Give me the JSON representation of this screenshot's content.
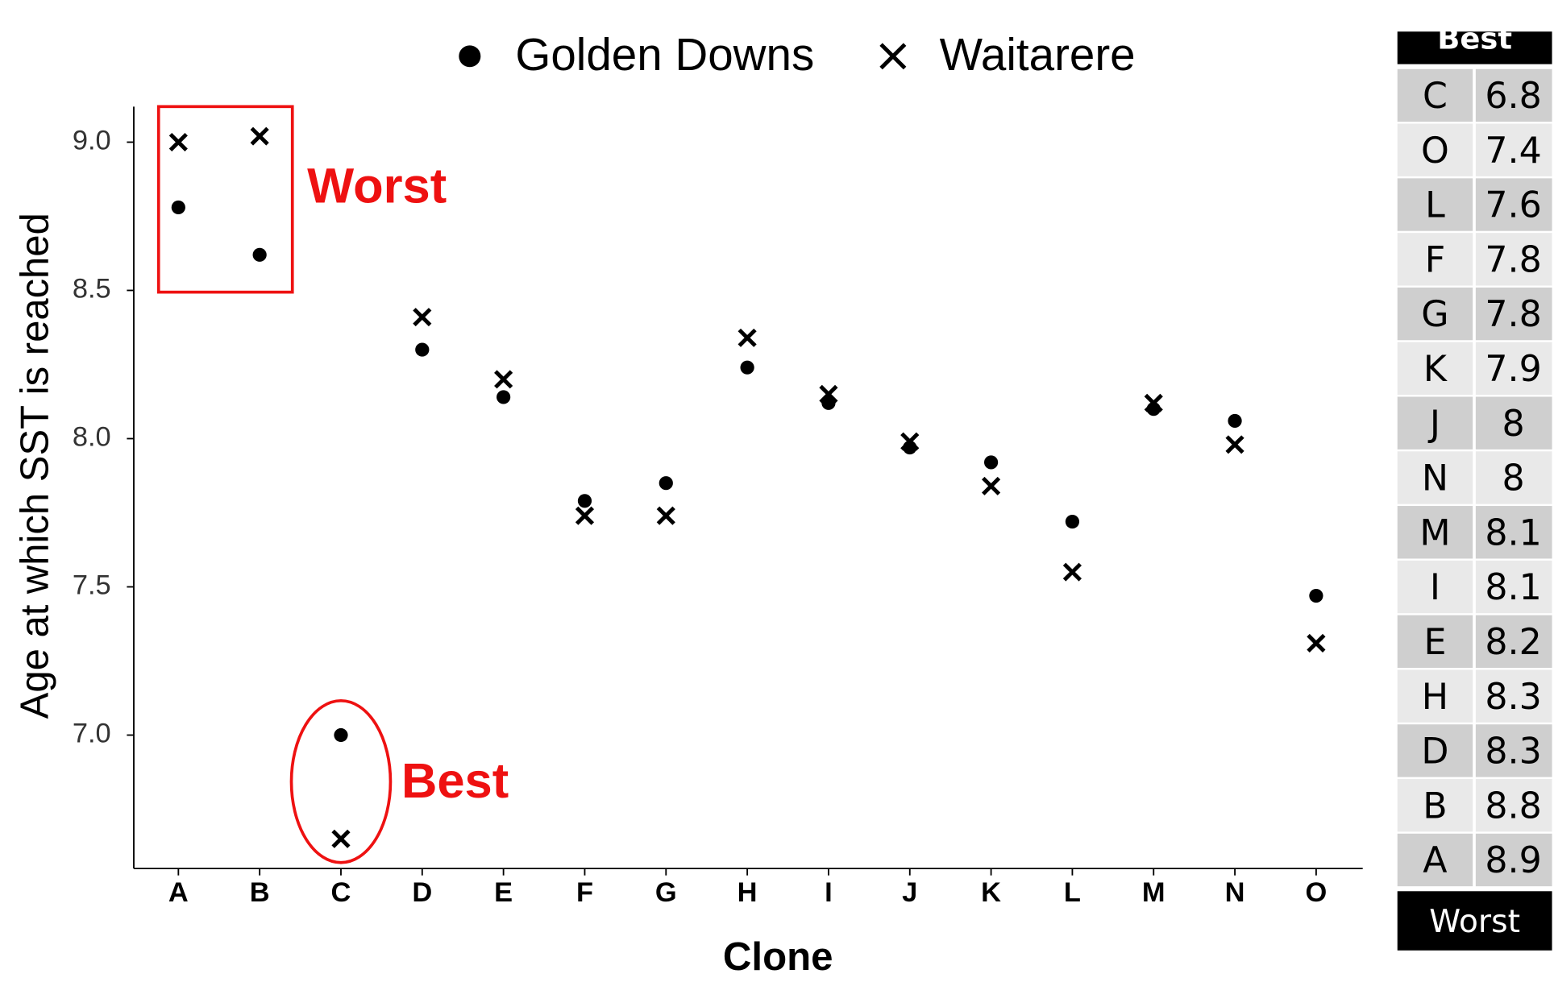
{
  "chart_data": {
    "type": "scatter",
    "categories": [
      "A",
      "B",
      "C",
      "D",
      "E",
      "F",
      "G",
      "H",
      "I",
      "J",
      "K",
      "L",
      "M",
      "N",
      "O"
    ],
    "series": [
      {
        "name": "Golden Downs",
        "color": "#000000",
        "marker": "dot",
        "values": [
          8.78,
          8.62,
          7.0,
          8.3,
          8.14,
          7.79,
          7.85,
          8.24,
          8.12,
          7.97,
          7.92,
          7.72,
          8.1,
          8.06,
          7.47
        ]
      },
      {
        "name": "Waitarere",
        "color": "#000000",
        "marker": "cross",
        "values": [
          9.0,
          9.02,
          6.65,
          8.41,
          8.2,
          7.74,
          7.74,
          8.34,
          8.15,
          7.99,
          7.84,
          7.55,
          8.12,
          7.98,
          7.31
        ]
      }
    ],
    "x_label": "Clone",
    "y_label": "Age at which SST is reached",
    "ylim": [
      6.55,
      9.12
    ],
    "yticks": [
      {
        "value": 7.0,
        "label": "7.0"
      },
      7.5,
      {
        "value": 8.0,
        "label": "8.0"
      },
      8.5,
      {
        "value": 9.0,
        "label": "9.0"
      }
    ],
    "legend": "top",
    "annotations": [
      {
        "text": "Worst",
        "color": "#ee1111"
      },
      {
        "text": "Best",
        "color": "#ee1111"
      }
    ]
  },
  "table": {
    "header": "Best",
    "footer": "Worst",
    "rows": [
      [
        "C",
        6.8
      ],
      [
        "O",
        7.4
      ],
      [
        "L",
        7.6
      ],
      [
        "F",
        7.8
      ],
      [
        "G",
        7.8
      ],
      [
        "K",
        7.9
      ],
      [
        "J",
        8
      ],
      [
        "N",
        8
      ],
      [
        "M",
        8.1
      ],
      [
        "I",
        8.1
      ],
      [
        "E",
        8.2
      ],
      [
        "H",
        8.3
      ],
      [
        "D",
        8.3
      ],
      [
        "B",
        8.8
      ],
      [
        "A",
        8.9
      ]
    ]
  }
}
